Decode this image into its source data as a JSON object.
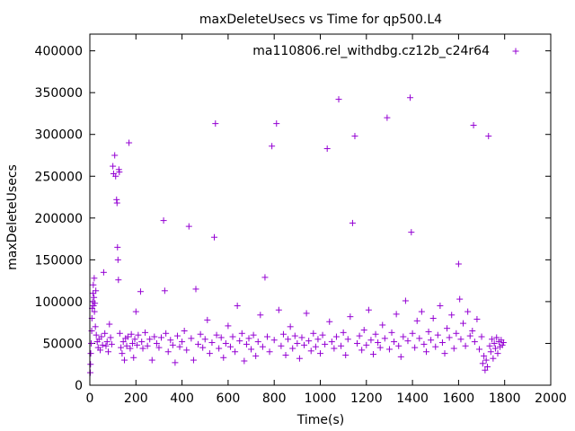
{
  "chart_data": {
    "type": "scatter",
    "title": "maxDeleteUsecs vs Time for qp500.L4",
    "xlabel": "Time(s)",
    "ylabel": "maxDeleteUsecs",
    "xlim": [
      0,
      2000
    ],
    "ylim": [
      0,
      420000
    ],
    "x_ticks": [
      "0",
      "200",
      "400",
      "600",
      "800",
      "1000",
      "1200",
      "1400",
      "1600",
      "1800",
      "2000"
    ],
    "y_ticks": [
      "0",
      "50000",
      "100000",
      "150000",
      "200000",
      "250000",
      "300000",
      "350000",
      "400000"
    ],
    "x_tick_values": [
      0,
      200,
      400,
      600,
      800,
      1000,
      1200,
      1400,
      1600,
      1800,
      2000
    ],
    "y_tick_values": [
      0,
      50000,
      100000,
      150000,
      200000,
      250000,
      300000,
      350000,
      400000
    ],
    "grid": false,
    "legend_position": "top-right",
    "series": [
      {
        "name": "ma110806.rel_withdbg.cz12b_c24r64",
        "color": "#9400d3",
        "marker": "plus",
        "points": [
          [
            2,
            15000
          ],
          [
            3,
            25000
          ],
          [
            4,
            38000
          ],
          [
            6,
            50000
          ],
          [
            8,
            65000
          ],
          [
            9,
            80000
          ],
          [
            10,
            92000
          ],
          [
            12,
            100000
          ],
          [
            14,
            110000
          ],
          [
            15,
            120000
          ],
          [
            16,
            95000
          ],
          [
            18,
            105000
          ],
          [
            19,
            128000
          ],
          [
            20,
            88000
          ],
          [
            22,
            98000
          ],
          [
            24,
            70000
          ],
          [
            26,
            113000
          ],
          [
            28,
            60000
          ],
          [
            32,
            52000
          ],
          [
            36,
            45000
          ],
          [
            40,
            55000
          ],
          [
            45,
            42000
          ],
          [
            50,
            58000
          ],
          [
            55,
            48000
          ],
          [
            60,
            135000
          ],
          [
            65,
            62000
          ],
          [
            70,
            47000
          ],
          [
            75,
            52000
          ],
          [
            80,
            40000
          ],
          [
            85,
            73000
          ],
          [
            90,
            57000
          ],
          [
            95,
            49000
          ],
          [
            100,
            262000
          ],
          [
            103,
            253000
          ],
          [
            108,
            275000
          ],
          [
            112,
            250000
          ],
          [
            116,
            222000
          ],
          [
            118,
            218000
          ],
          [
            120,
            165000
          ],
          [
            122,
            150000
          ],
          [
            124,
            126000
          ],
          [
            126,
            258000
          ],
          [
            128,
            255000
          ],
          [
            130,
            62000
          ],
          [
            135,
            45000
          ],
          [
            140,
            38000
          ],
          [
            145,
            52000
          ],
          [
            150,
            30000
          ],
          [
            155,
            56000
          ],
          [
            160,
            47000
          ],
          [
            165,
            58000
          ],
          [
            170,
            290000
          ],
          [
            175,
            44000
          ],
          [
            180,
            61000
          ],
          [
            185,
            50000
          ],
          [
            190,
            33000
          ],
          [
            195,
            55000
          ],
          [
            200,
            88000
          ],
          [
            205,
            48000
          ],
          [
            210,
            60000
          ],
          [
            220,
            112000
          ],
          [
            225,
            52000
          ],
          [
            230,
            44000
          ],
          [
            240,
            63000
          ],
          [
            250,
            47000
          ],
          [
            260,
            55000
          ],
          [
            270,
            30000
          ],
          [
            280,
            58000
          ],
          [
            290,
            50000
          ],
          [
            300,
            45000
          ],
          [
            310,
            57000
          ],
          [
            320,
            197000
          ],
          [
            325,
            113000
          ],
          [
            330,
            62000
          ],
          [
            340,
            40000
          ],
          [
            350,
            54000
          ],
          [
            360,
            48000
          ],
          [
            370,
            27000
          ],
          [
            380,
            59000
          ],
          [
            390,
            46000
          ],
          [
            400,
            52000
          ],
          [
            410,
            65000
          ],
          [
            420,
            42000
          ],
          [
            430,
            190000
          ],
          [
            440,
            56000
          ],
          [
            450,
            30000
          ],
          [
            460,
            115000
          ],
          [
            470,
            49000
          ],
          [
            480,
            61000
          ],
          [
            490,
            45000
          ],
          [
            500,
            55000
          ],
          [
            510,
            78000
          ],
          [
            520,
            38000
          ],
          [
            530,
            51000
          ],
          [
            540,
            177000
          ],
          [
            545,
            313000
          ],
          [
            550,
            60000
          ],
          [
            560,
            44000
          ],
          [
            570,
            57000
          ],
          [
            580,
            33000
          ],
          [
            590,
            50000
          ],
          [
            600,
            71000
          ],
          [
            610,
            46000
          ],
          [
            620,
            58000
          ],
          [
            630,
            40000
          ],
          [
            640,
            95000
          ],
          [
            650,
            53000
          ],
          [
            660,
            62000
          ],
          [
            670,
            29000
          ],
          [
            680,
            49000
          ],
          [
            690,
            56000
          ],
          [
            700,
            43000
          ],
          [
            710,
            60000
          ],
          [
            720,
            35000
          ],
          [
            730,
            52000
          ],
          [
            740,
            84000
          ],
          [
            750,
            46000
          ],
          [
            760,
            129000
          ],
          [
            770,
            58000
          ],
          [
            780,
            40000
          ],
          [
            790,
            286000
          ],
          [
            800,
            54000
          ],
          [
            810,
            313000
          ],
          [
            820,
            90000
          ],
          [
            830,
            47000
          ],
          [
            840,
            61000
          ],
          [
            850,
            36000
          ],
          [
            860,
            55000
          ],
          [
            870,
            70000
          ],
          [
            880,
            44000
          ],
          [
            890,
            59000
          ],
          [
            900,
            50000
          ],
          [
            910,
            32000
          ],
          [
            920,
            57000
          ],
          [
            930,
            48000
          ],
          [
            940,
            86000
          ],
          [
            950,
            53000
          ],
          [
            960,
            41000
          ],
          [
            970,
            62000
          ],
          [
            980,
            46000
          ],
          [
            990,
            55000
          ],
          [
            1000,
            38000
          ],
          [
            1010,
            60000
          ],
          [
            1020,
            49000
          ],
          [
            1030,
            283000
          ],
          [
            1040,
            76000
          ],
          [
            1050,
            52000
          ],
          [
            1060,
            44000
          ],
          [
            1070,
            58000
          ],
          [
            1080,
            342000
          ],
          [
            1090,
            47000
          ],
          [
            1100,
            63000
          ],
          [
            1110,
            36000
          ],
          [
            1120,
            55000
          ],
          [
            1130,
            82000
          ],
          [
            1140,
            194000
          ],
          [
            1150,
            298000
          ],
          [
            1160,
            50000
          ],
          [
            1170,
            59000
          ],
          [
            1180,
            42000
          ],
          [
            1190,
            66000
          ],
          [
            1200,
            48000
          ],
          [
            1210,
            90000
          ],
          [
            1220,
            54000
          ],
          [
            1230,
            37000
          ],
          [
            1240,
            61000
          ],
          [
            1250,
            51000
          ],
          [
            1260,
            45000
          ],
          [
            1270,
            72000
          ],
          [
            1280,
            56000
          ],
          [
            1290,
            320000
          ],
          [
            1300,
            43000
          ],
          [
            1310,
            63000
          ],
          [
            1320,
            52000
          ],
          [
            1330,
            85000
          ],
          [
            1340,
            47000
          ],
          [
            1350,
            34000
          ],
          [
            1360,
            58000
          ],
          [
            1370,
            101000
          ],
          [
            1380,
            53000
          ],
          [
            1390,
            344000
          ],
          [
            1395,
            183000
          ],
          [
            1400,
            62000
          ],
          [
            1410,
            45000
          ],
          [
            1420,
            77000
          ],
          [
            1430,
            56000
          ],
          [
            1440,
            88000
          ],
          [
            1450,
            49000
          ],
          [
            1460,
            40000
          ],
          [
            1470,
            64000
          ],
          [
            1480,
            54000
          ],
          [
            1490,
            80000
          ],
          [
            1500,
            46000
          ],
          [
            1510,
            60000
          ],
          [
            1520,
            95000
          ],
          [
            1530,
            51000
          ],
          [
            1540,
            38000
          ],
          [
            1550,
            68000
          ],
          [
            1560,
            57000
          ],
          [
            1570,
            84000
          ],
          [
            1580,
            44000
          ],
          [
            1590,
            62000
          ],
          [
            1600,
            145000
          ],
          [
            1605,
            103000
          ],
          [
            1610,
            55000
          ],
          [
            1620,
            74000
          ],
          [
            1630,
            47000
          ],
          [
            1640,
            88000
          ],
          [
            1650,
            59000
          ],
          [
            1660,
            65000
          ],
          [
            1665,
            311000
          ],
          [
            1670,
            52000
          ],
          [
            1680,
            79000
          ],
          [
            1690,
            43000
          ],
          [
            1700,
            58000
          ],
          [
            1705,
            26000
          ],
          [
            1710,
            35000
          ],
          [
            1715,
            18000
          ],
          [
            1720,
            30000
          ],
          [
            1725,
            22000
          ],
          [
            1730,
            298000
          ],
          [
            1735,
            47000
          ],
          [
            1740,
            40000
          ],
          [
            1745,
            55000
          ],
          [
            1750,
            32000
          ],
          [
            1755,
            50000
          ],
          [
            1760,
            44000
          ],
          [
            1765,
            57000
          ],
          [
            1770,
            38000
          ],
          [
            1775,
            52000
          ],
          [
            1780,
            46000
          ],
          [
            1785,
            54000
          ],
          [
            1790,
            48000
          ],
          [
            1795,
            51000
          ]
        ]
      }
    ]
  }
}
